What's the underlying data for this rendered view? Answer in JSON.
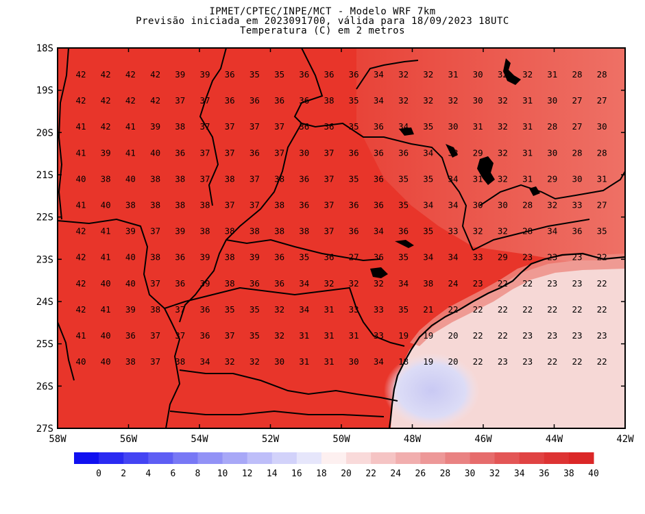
{
  "header": {
    "line1": "IPMET/CPTEC/INPE/MCT - Modelo WRF 7km",
    "line2": "Previsão iniciada em 2023091700, válida para 18/09/2023 18UTC",
    "line3": "Temperatura (C) em 2 metros"
  },
  "map": {
    "lat_labels": [
      "18S",
      "19S",
      "20S",
      "21S",
      "22S",
      "23S",
      "24S",
      "25S",
      "26S",
      "27S"
    ],
    "lon_labels": [
      "58W",
      "56W",
      "54W",
      "52W",
      "50W",
      "48W",
      "46W",
      "44W",
      "42W"
    ],
    "lat_range": [
      -27,
      -18
    ],
    "lon_range": [
      -58,
      -42
    ],
    "grid_values": [
      [
        "42",
        "42",
        "42",
        "42",
        "39",
        "39",
        "36",
        "35",
        "35",
        "36",
        "36",
        "36",
        "34",
        "32",
        "32",
        "31",
        "30",
        "32",
        "32",
        "31",
        "28",
        "28"
      ],
      [
        "42",
        "42",
        "42",
        "42",
        "37",
        "37",
        "36",
        "36",
        "36",
        "36",
        "38",
        "35",
        "34",
        "32",
        "32",
        "32",
        "30",
        "32",
        "31",
        "30",
        "27",
        "27"
      ],
      [
        "41",
        "42",
        "41",
        "39",
        "38",
        "37",
        "37",
        "37",
        "37",
        "36",
        "36",
        "35",
        "36",
        "34",
        "35",
        "30",
        "31",
        "32",
        "31",
        "28",
        "27",
        "30"
      ],
      [
        "41",
        "39",
        "41",
        "40",
        "36",
        "37",
        "37",
        "36",
        "37",
        "30",
        "37",
        "36",
        "36",
        "36",
        "34",
        "33",
        "29",
        "32",
        "31",
        "30",
        "28",
        "28"
      ],
      [
        "40",
        "38",
        "40",
        "38",
        "38",
        "37",
        "38",
        "37",
        "38",
        "36",
        "37",
        "35",
        "36",
        "35",
        "35",
        "34",
        "31",
        "32",
        "31",
        "29",
        "30",
        "31"
      ],
      [
        "41",
        "40",
        "38",
        "38",
        "38",
        "38",
        "37",
        "37",
        "38",
        "36",
        "37",
        "36",
        "36",
        "35",
        "34",
        "34",
        "30",
        "30",
        "28",
        "32",
        "33",
        "27"
      ],
      [
        "42",
        "41",
        "39",
        "37",
        "39",
        "38",
        "38",
        "38",
        "38",
        "38",
        "37",
        "36",
        "34",
        "36",
        "35",
        "33",
        "32",
        "32",
        "28",
        "34",
        "36",
        "35"
      ],
      [
        "42",
        "41",
        "40",
        "38",
        "36",
        "39",
        "38",
        "39",
        "36",
        "35",
        "36",
        "27",
        "36",
        "35",
        "34",
        "34",
        "33",
        "29",
        "23",
        "23",
        "23",
        "22"
      ],
      [
        "42",
        "40",
        "40",
        "37",
        "36",
        "39",
        "38",
        "36",
        "36",
        "34",
        "32",
        "32",
        "32",
        "34",
        "38",
        "24",
        "23",
        "22",
        "22",
        "23",
        "23",
        "22"
      ],
      [
        "42",
        "41",
        "39",
        "38",
        "37",
        "36",
        "35",
        "35",
        "32",
        "34",
        "31",
        "33",
        "33",
        "35",
        "21",
        "22",
        "22",
        "22",
        "22",
        "22",
        "22",
        "22"
      ],
      [
        "41",
        "40",
        "36",
        "37",
        "37",
        "36",
        "37",
        "35",
        "32",
        "31",
        "31",
        "31",
        "33",
        "19",
        "19",
        "20",
        "22",
        "22",
        "23",
        "23",
        "23",
        "23"
      ],
      [
        "40",
        "40",
        "38",
        "37",
        "38",
        "34",
        "32",
        "32",
        "30",
        "31",
        "31",
        "30",
        "34",
        "18",
        "19",
        "20",
        "22",
        "23",
        "23",
        "22",
        "22",
        "22"
      ]
    ],
    "colors": {
      "land_hot": "#e8352a",
      "ocean_cool": "#f6d8d6",
      "cold_patch": "#d8d8f4",
      "border": "#000000"
    }
  },
  "colorbar": {
    "labels": [
      "0",
      "2",
      "4",
      "6",
      "8",
      "10",
      "12",
      "14",
      "16",
      "18",
      "20",
      "22",
      "24",
      "26",
      "28",
      "30",
      "32",
      "34",
      "36",
      "38",
      "40"
    ],
    "colors": [
      "#1010f0",
      "#2a2af2",
      "#4444f3",
      "#5e5ef4",
      "#7878f5",
      "#9292f6",
      "#a8a8f7",
      "#bebef9",
      "#d2d2fa",
      "#e6e6fb",
      "#fdf0f0",
      "#f9dada",
      "#f5c4c4",
      "#f1aeae",
      "#ed9898",
      "#e98282",
      "#e66c6c",
      "#e35656",
      "#e04343",
      "#dd3333",
      "#db2727"
    ]
  }
}
